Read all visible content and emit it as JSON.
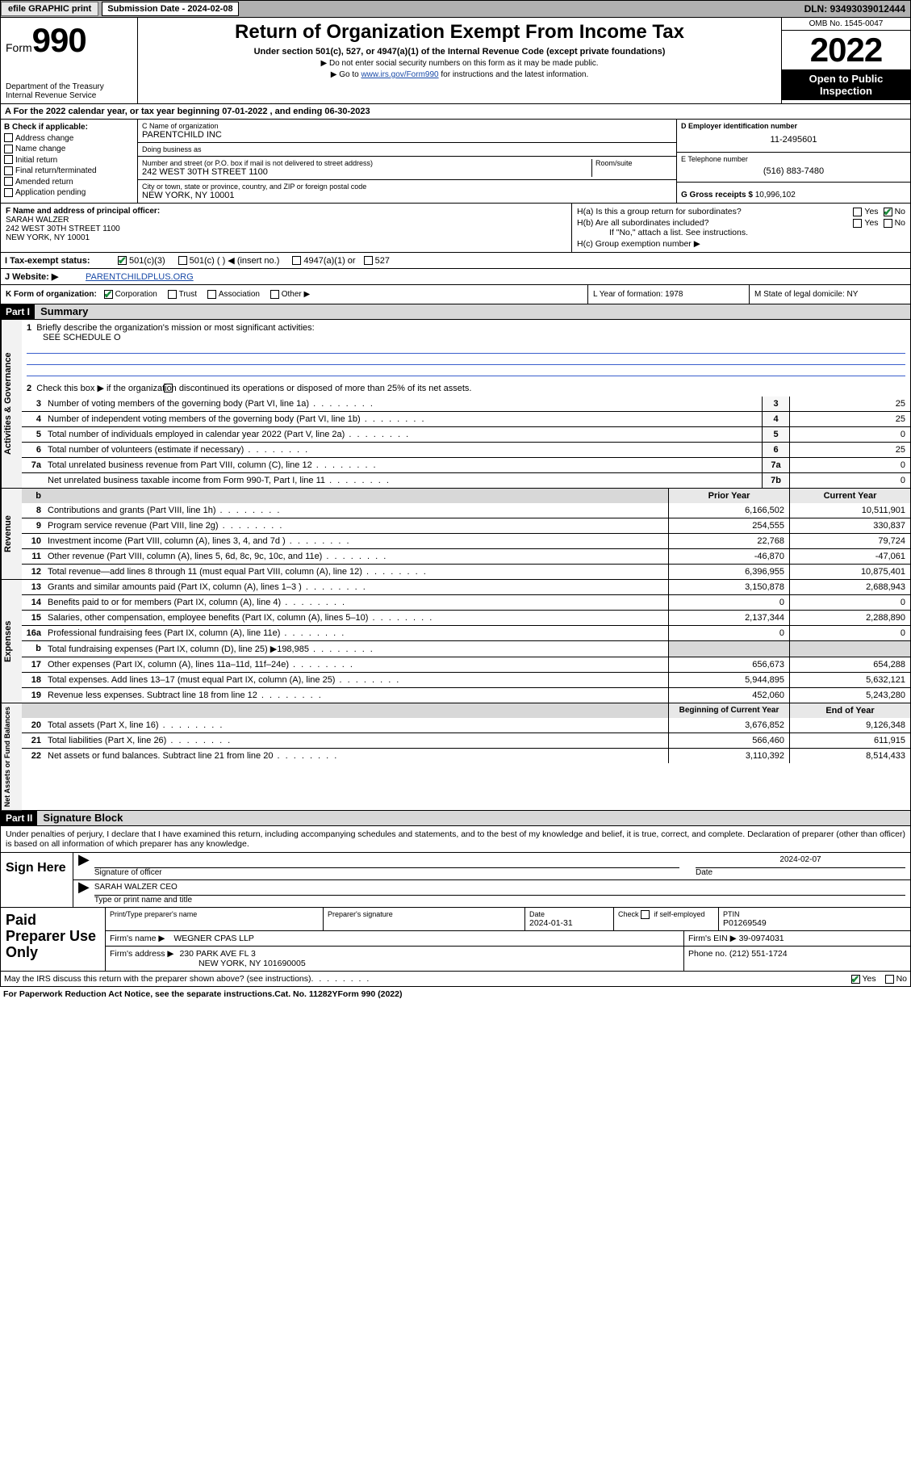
{
  "topbar": {
    "efile": "efile GRAPHIC print",
    "submission_label": "Submission Date - 2024-02-08",
    "dln": "DLN: 93493039012444"
  },
  "header": {
    "form_label": "Form",
    "form_number": "990",
    "dept": "Department of the Treasury",
    "irs": "Internal Revenue Service",
    "title": "Return of Organization Exempt From Income Tax",
    "subtitle": "Under section 501(c), 527, or 4947(a)(1) of the Internal Revenue Code (except private foundations)",
    "note1": "▶ Do not enter social security numbers on this form as it may be made public.",
    "note2_pre": "▶ Go to ",
    "note2_link": "www.irs.gov/Form990",
    "note2_post": " for instructions and the latest information.",
    "omb": "OMB No. 1545-0047",
    "year": "2022",
    "open_public": "Open to Public Inspection"
  },
  "A": {
    "line": "A For the 2022 calendar year, or tax year beginning 07-01-2022   , and ending 06-30-2023"
  },
  "B": {
    "label": "B Check if applicable:",
    "opts": [
      "Address change",
      "Name change",
      "Initial return",
      "Final return/terminated",
      "Amended return",
      "Application pending"
    ]
  },
  "C": {
    "name_label": "C Name of organization",
    "name": "PARENTCHILD INC",
    "dba_label": "Doing business as",
    "dba": "",
    "addr_label": "Number and street (or P.O. box if mail is not delivered to street address)",
    "room_label": "Room/suite",
    "addr": "242 WEST 30TH STREET 1100",
    "city_label": "City or town, state or province, country, and ZIP or foreign postal code",
    "city": "NEW YORK, NY  10001"
  },
  "D": {
    "label": "D Employer identification number",
    "val": "11-2495601"
  },
  "E": {
    "label": "E Telephone number",
    "val": "(516) 883-7480"
  },
  "G": {
    "label": "G Gross receipts $",
    "val": "10,996,102"
  },
  "F": {
    "label": "F  Name and address of principal officer:",
    "name": "SARAH WALZER",
    "addr1": "242 WEST 30TH STREET 1100",
    "addr2": "NEW YORK, NY  10001"
  },
  "H": {
    "a": "H(a)  Is this a group return for subordinates?",
    "b": "H(b)  Are all subordinates included?",
    "b_note": "If \"No,\" attach a list. See instructions.",
    "c": "H(c)  Group exemption number ▶",
    "yes": "Yes",
    "no": "No"
  },
  "I": {
    "label": "I    Tax-exempt status:",
    "o1": "501(c)(3)",
    "o2": "501(c) (  ) ◀ (insert no.)",
    "o3": "4947(a)(1) or",
    "o4": "527"
  },
  "J": {
    "label": "J   Website: ▶",
    "val": "PARENTCHILDPLUS.ORG"
  },
  "K": {
    "label": "K Form of organization:",
    "o1": "Corporation",
    "o2": "Trust",
    "o3": "Association",
    "o4": "Other ▶"
  },
  "L": {
    "label": "L Year of formation: 1978"
  },
  "M": {
    "label": "M State of legal domicile: NY"
  },
  "partI": {
    "hdr": "Part I",
    "title": "Summary"
  },
  "summary": {
    "q1": "Briefly describe the organization's mission or most significant activities:",
    "q1v": "SEE SCHEDULE O",
    "q2": "Check this box ▶        if the organization discontinued its operations or disposed of more than 25% of its net assets.",
    "rows_top": [
      {
        "n": "3",
        "t": "Number of voting members of the governing body (Part VI, line 1a)",
        "box": "3",
        "v": "25"
      },
      {
        "n": "4",
        "t": "Number of independent voting members of the governing body (Part VI, line 1b)",
        "box": "4",
        "v": "25"
      },
      {
        "n": "5",
        "t": "Total number of individuals employed in calendar year 2022 (Part V, line 2a)",
        "box": "5",
        "v": "0"
      },
      {
        "n": "6",
        "t": "Total number of volunteers (estimate if necessary)",
        "box": "6",
        "v": "25"
      },
      {
        "n": "7a",
        "t": "Total unrelated business revenue from Part VIII, column (C), line 12",
        "box": "7a",
        "v": "0"
      },
      {
        "n": "",
        "t": "Net unrelated business taxable income from Form 990-T, Part I, line 11",
        "box": "7b",
        "v": "0"
      }
    ],
    "col_hdr_prior": "Prior Year",
    "col_hdr_curr": "Current Year",
    "revenue": [
      {
        "n": "8",
        "t": "Contributions and grants (Part VIII, line 1h)",
        "p": "6,166,502",
        "c": "10,511,901"
      },
      {
        "n": "9",
        "t": "Program service revenue (Part VIII, line 2g)",
        "p": "254,555",
        "c": "330,837"
      },
      {
        "n": "10",
        "t": "Investment income (Part VIII, column (A), lines 3, 4, and 7d )",
        "p": "22,768",
        "c": "79,724"
      },
      {
        "n": "11",
        "t": "Other revenue (Part VIII, column (A), lines 5, 6d, 8c, 9c, 10c, and 11e)",
        "p": "-46,870",
        "c": "-47,061"
      },
      {
        "n": "12",
        "t": "Total revenue—add lines 8 through 11 (must equal Part VIII, column (A), line 12)",
        "p": "6,396,955",
        "c": "10,875,401"
      }
    ],
    "expenses": [
      {
        "n": "13",
        "t": "Grants and similar amounts paid (Part IX, column (A), lines 1–3 )",
        "p": "3,150,878",
        "c": "2,688,943"
      },
      {
        "n": "14",
        "t": "Benefits paid to or for members (Part IX, column (A), line 4)",
        "p": "0",
        "c": "0"
      },
      {
        "n": "15",
        "t": "Salaries, other compensation, employee benefits (Part IX, column (A), lines 5–10)",
        "p": "2,137,344",
        "c": "2,288,890"
      },
      {
        "n": "16a",
        "t": "Professional fundraising fees (Part IX, column (A), line 11e)",
        "p": "0",
        "c": "0"
      },
      {
        "n": "b",
        "t": "Total fundraising expenses (Part IX, column (D), line 25) ▶198,985",
        "p": "",
        "c": "",
        "grey": true
      },
      {
        "n": "17",
        "t": "Other expenses (Part IX, column (A), lines 11a–11d, 11f–24e)",
        "p": "656,673",
        "c": "654,288"
      },
      {
        "n": "18",
        "t": "Total expenses. Add lines 13–17 (must equal Part IX, column (A), line 25)",
        "p": "5,944,895",
        "c": "5,632,121"
      },
      {
        "n": "19",
        "t": "Revenue less expenses. Subtract line 18 from line 12",
        "p": "452,060",
        "c": "5,243,280"
      }
    ],
    "nab_hdr_beg": "Beginning of Current Year",
    "nab_hdr_end": "End of Year",
    "nab": [
      {
        "n": "20",
        "t": "Total assets (Part X, line 16)",
        "p": "3,676,852",
        "c": "9,126,348"
      },
      {
        "n": "21",
        "t": "Total liabilities (Part X, line 26)",
        "p": "566,460",
        "c": "611,915"
      },
      {
        "n": "22",
        "t": "Net assets or fund balances. Subtract line 21 from line 20",
        "p": "3,110,392",
        "c": "8,514,433"
      }
    ],
    "tabs": {
      "gov": "Activities & Governance",
      "rev": "Revenue",
      "exp": "Expenses",
      "nab": "Net Assets or Fund Balances"
    }
  },
  "partII": {
    "hdr": "Part II",
    "title": "Signature Block"
  },
  "sig": {
    "decl": "Under penalties of perjury, I declare that I have examined this return, including accompanying schedules and statements, and to the best of my knowledge and belief, it is true, correct, and complete. Declaration of preparer (other than officer) is based on all information of which preparer has any knowledge.",
    "sign_here": "Sign Here",
    "sig_officer": "Signature of officer",
    "date": "Date",
    "date_val": "2024-02-07",
    "name_title": "SARAH WALZER CEO",
    "name_title_label": "Type or print name and title"
  },
  "prep": {
    "left": "Paid Preparer Use Only",
    "h_name": "Print/Type preparer's name",
    "h_sig": "Preparer's signature",
    "h_date": "Date",
    "date_val": "2024-01-31",
    "check_label": "Check         if self-employed",
    "ptin_label": "PTIN",
    "ptin": "P01269549",
    "firm_name_label": "Firm's name     ▶",
    "firm_name": "WEGNER CPAS LLP",
    "firm_ein_label": "Firm's EIN ▶",
    "firm_ein": "39-0974031",
    "firm_addr_label": "Firm's address ▶",
    "firm_addr1": "230 PARK AVE FL 3",
    "firm_addr2": "NEW YORK, NY  101690005",
    "phone_label": "Phone no.",
    "phone": "(212) 551-1724"
  },
  "footer": {
    "may": "May the IRS discuss this return with the preparer shown above? (see instructions)",
    "yes": "Yes",
    "no": "No",
    "pra": "For Paperwork Reduction Act Notice, see the separate instructions.",
    "cat": "Cat. No. 11282Y",
    "form": "Form 990 (2022)"
  }
}
